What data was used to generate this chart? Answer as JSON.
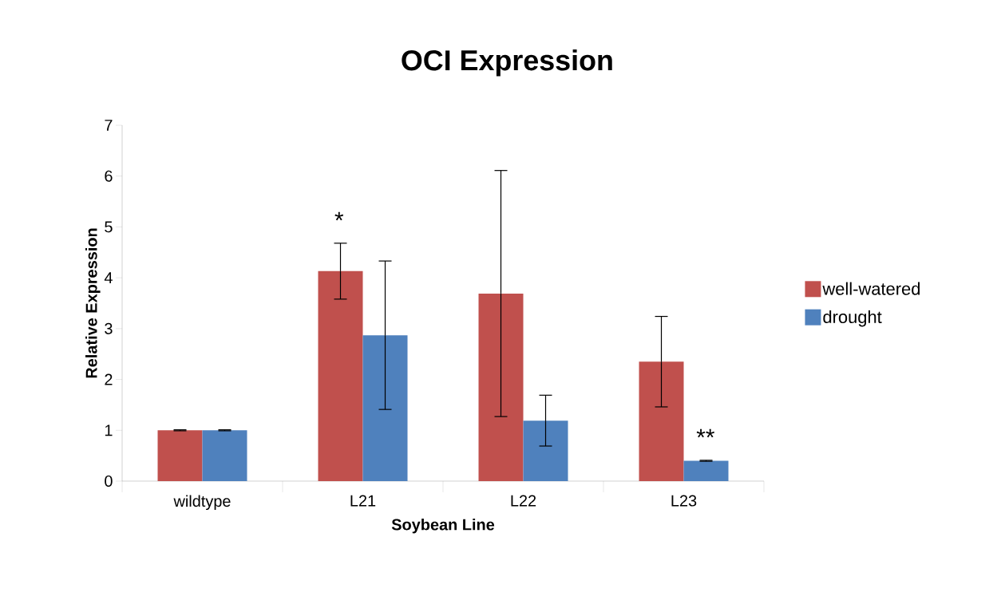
{
  "chart_data": {
    "type": "bar",
    "title": "OCI Expression",
    "xlabel": "Soybean Line",
    "ylabel": "Relative Expression",
    "categories": [
      "wildtype",
      "L21",
      "L22",
      "L23"
    ],
    "series": [
      {
        "name": "well-watered",
        "color": "#c0504d",
        "values": [
          1.0,
          4.13,
          3.69,
          2.35
        ],
        "errors": [
          0.01,
          0.55,
          2.42,
          0.89
        ]
      },
      {
        "name": "drought",
        "color": "#4f81bd",
        "values": [
          1.0,
          2.87,
          1.19,
          0.4
        ],
        "errors": [
          0.01,
          1.46,
          0.5,
          0.01
        ]
      }
    ],
    "ylim": [
      0,
      7
    ],
    "yticks": [
      0,
      1,
      2,
      3,
      4,
      5,
      6,
      7
    ],
    "grid": false,
    "legend": "right",
    "annotations": [
      "*",
      "**"
    ]
  }
}
